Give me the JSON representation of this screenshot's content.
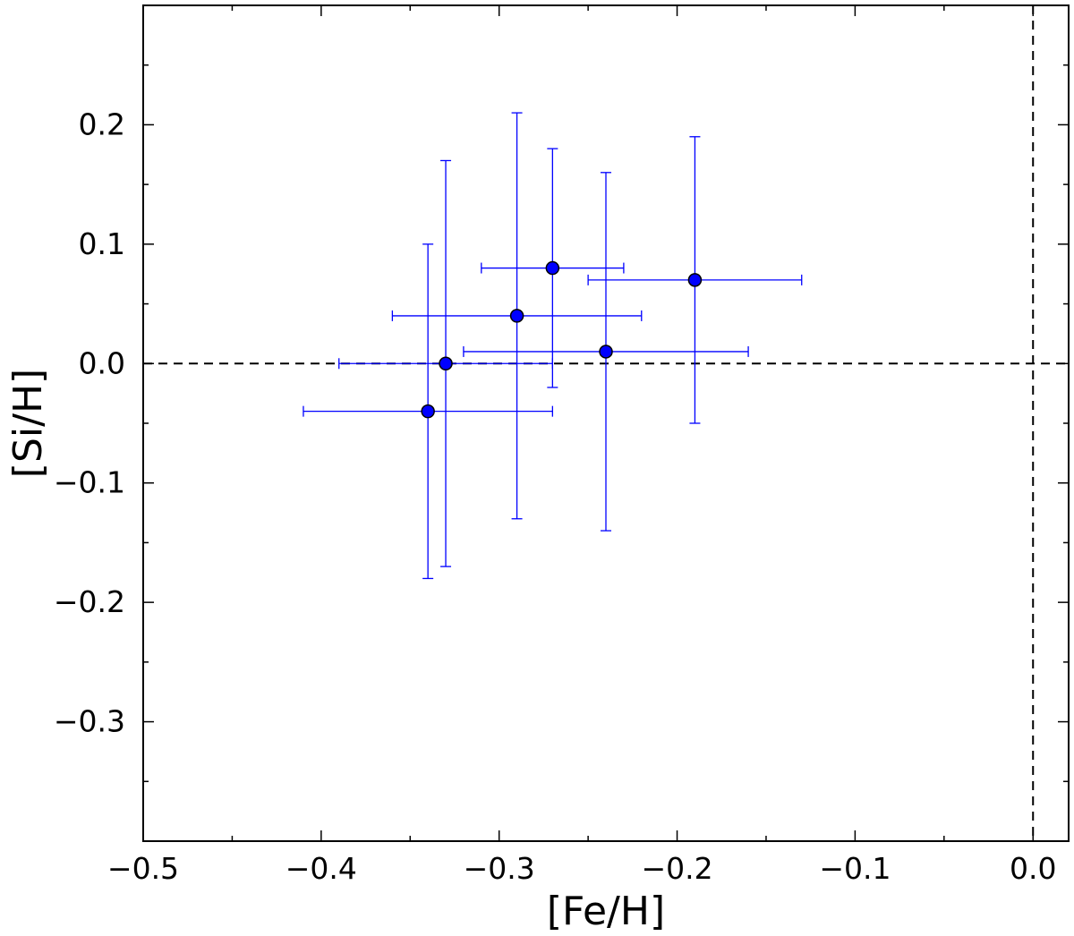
{
  "chart_data": {
    "type": "scatter",
    "title": "",
    "xlabel": "[Fe/H]",
    "ylabel": "[Si/H]",
    "xlim": [
      -0.5,
      0.02
    ],
    "ylim": [
      -0.4,
      0.3
    ],
    "xticks": [
      -0.5,
      -0.4,
      -0.3,
      -0.2,
      -0.1,
      0.0
    ],
    "xtick_labels": [
      "−0.5",
      "−0.4",
      "−0.3",
      "−0.2",
      "−0.1",
      "0.0"
    ],
    "yticks": [
      -0.3,
      -0.2,
      -0.1,
      0.0,
      0.1,
      0.2
    ],
    "ytick_labels": [
      "−0.3",
      "−0.2",
      "−0.1",
      "0.0",
      "0.1",
      "0.2"
    ],
    "grid": false,
    "reference_lines": {
      "horizontal_y": 0.0,
      "vertical_x": 0.0,
      "style": "dashed"
    },
    "series": [
      {
        "color": "#0000ff",
        "marker": "circle",
        "points": [
          {
            "x": -0.34,
            "y": -0.04,
            "xerr": 0.07,
            "yerr": 0.14
          },
          {
            "x": -0.33,
            "y": 0.0,
            "xerr": 0.06,
            "yerr": 0.17
          },
          {
            "x": -0.29,
            "y": 0.04,
            "xerr": 0.07,
            "yerr": 0.17
          },
          {
            "x": -0.27,
            "y": 0.08,
            "xerr": 0.04,
            "yerr": 0.1
          },
          {
            "x": -0.24,
            "y": 0.01,
            "xerr": 0.08,
            "yerr": 0.15
          },
          {
            "x": -0.19,
            "y": 0.07,
            "xerr": 0.06,
            "yerr": 0.12
          }
        ]
      }
    ]
  }
}
